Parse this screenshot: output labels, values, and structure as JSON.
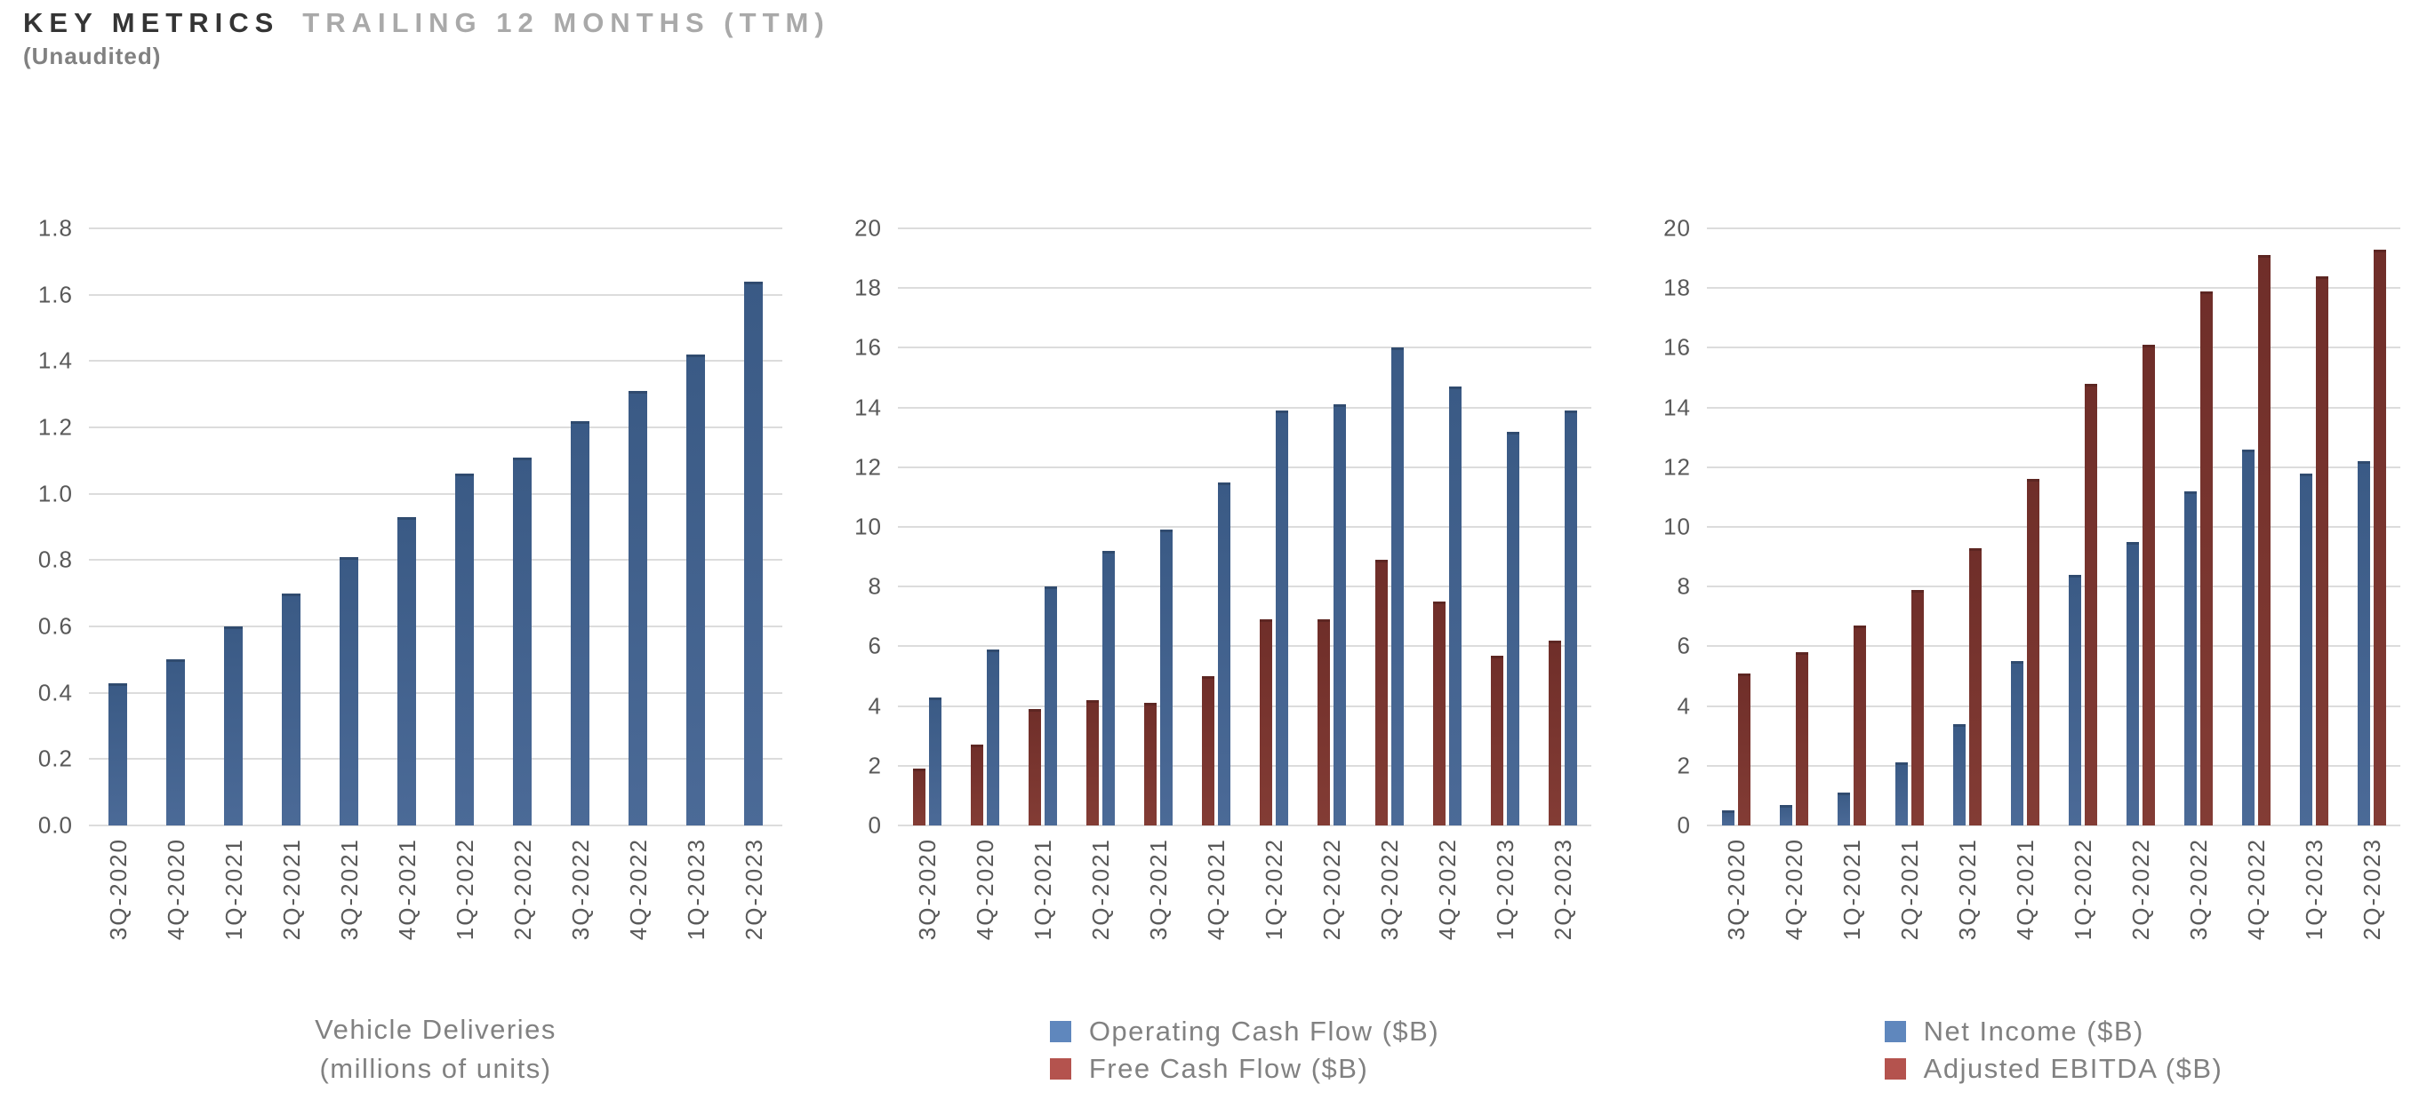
{
  "header": {
    "title_primary": "KEY METRICS",
    "title_secondary": "TRAILING 12 MONTHS (TTM)",
    "subtitle": "(Unaudited)"
  },
  "palette": {
    "bar_blue_top": "#3a5a85",
    "bar_blue_bottom": "#4b6a97",
    "bar_red_top": "#6f2e29",
    "bar_red_bottom": "#833c35",
    "legend_blue": "#5f87bd",
    "legend_red": "#b4534e",
    "gridline": "#dcdcdc",
    "tick_text": "#595959",
    "muted_text": "#818181"
  },
  "categories": [
    "3Q-2020",
    "4Q-2020",
    "1Q-2021",
    "2Q-2021",
    "3Q-2021",
    "4Q-2021",
    "1Q-2022",
    "2Q-2022",
    "3Q-2022",
    "4Q-2022",
    "1Q-2023",
    "2Q-2023"
  ],
  "chart_data": [
    {
      "type": "bar",
      "title": "Vehicle Deliveries (millions of units)",
      "ylim": [
        0,
        1.8
      ],
      "ytick_step": 0.2,
      "ytick_decimals": 1,
      "grid": true,
      "legend_position": "none",
      "caption": [
        "Vehicle Deliveries",
        "(millions of units)"
      ],
      "series": [
        {
          "name": "Vehicle Deliveries",
          "color": "blue",
          "values": [
            0.43,
            0.5,
            0.6,
            0.7,
            0.81,
            0.93,
            1.06,
            1.11,
            1.22,
            1.31,
            1.42,
            1.64
          ]
        }
      ]
    },
    {
      "type": "bar",
      "title": "Cash Flow ($B)",
      "ylim": [
        0,
        20
      ],
      "ytick_step": 2,
      "ytick_decimals": 0,
      "grid": true,
      "legend_position": "bottom",
      "series": [
        {
          "name": "Free Cash Flow ($B)",
          "color": "red",
          "values": [
            1.9,
            2.7,
            3.9,
            4.2,
            4.1,
            5.0,
            6.9,
            6.9,
            8.9,
            7.5,
            5.7,
            6.2
          ]
        },
        {
          "name": "Operating Cash Flow ($B)",
          "color": "blue",
          "values": [
            4.3,
            5.9,
            8.0,
            9.2,
            9.9,
            11.5,
            13.9,
            14.1,
            16.0,
            14.7,
            13.2,
            13.9
          ]
        }
      ],
      "legend": [
        {
          "label": "Operating Cash Flow ($B)",
          "color": "blue"
        },
        {
          "label": "Free Cash Flow ($B)",
          "color": "red"
        }
      ]
    },
    {
      "type": "bar",
      "title": "Net Income / Adjusted EBITDA ($B)",
      "ylim": [
        0,
        20
      ],
      "ytick_step": 2,
      "ytick_decimals": 0,
      "grid": true,
      "legend_position": "bottom",
      "series": [
        {
          "name": "Net Income ($B)",
          "color": "blue",
          "values": [
            0.5,
            0.7,
            1.1,
            2.1,
            3.4,
            5.5,
            8.4,
            9.5,
            11.2,
            12.6,
            11.8,
            12.2
          ]
        },
        {
          "name": "Adjusted EBITDA ($B)",
          "color": "red",
          "values": [
            5.1,
            5.8,
            6.7,
            7.9,
            9.3,
            11.6,
            14.8,
            16.1,
            17.9,
            19.1,
            18.4,
            19.3
          ]
        }
      ],
      "legend": [
        {
          "label": "Net Income ($B)",
          "color": "blue"
        },
        {
          "label": "Adjusted EBITDA ($B)",
          "color": "red"
        }
      ]
    }
  ]
}
